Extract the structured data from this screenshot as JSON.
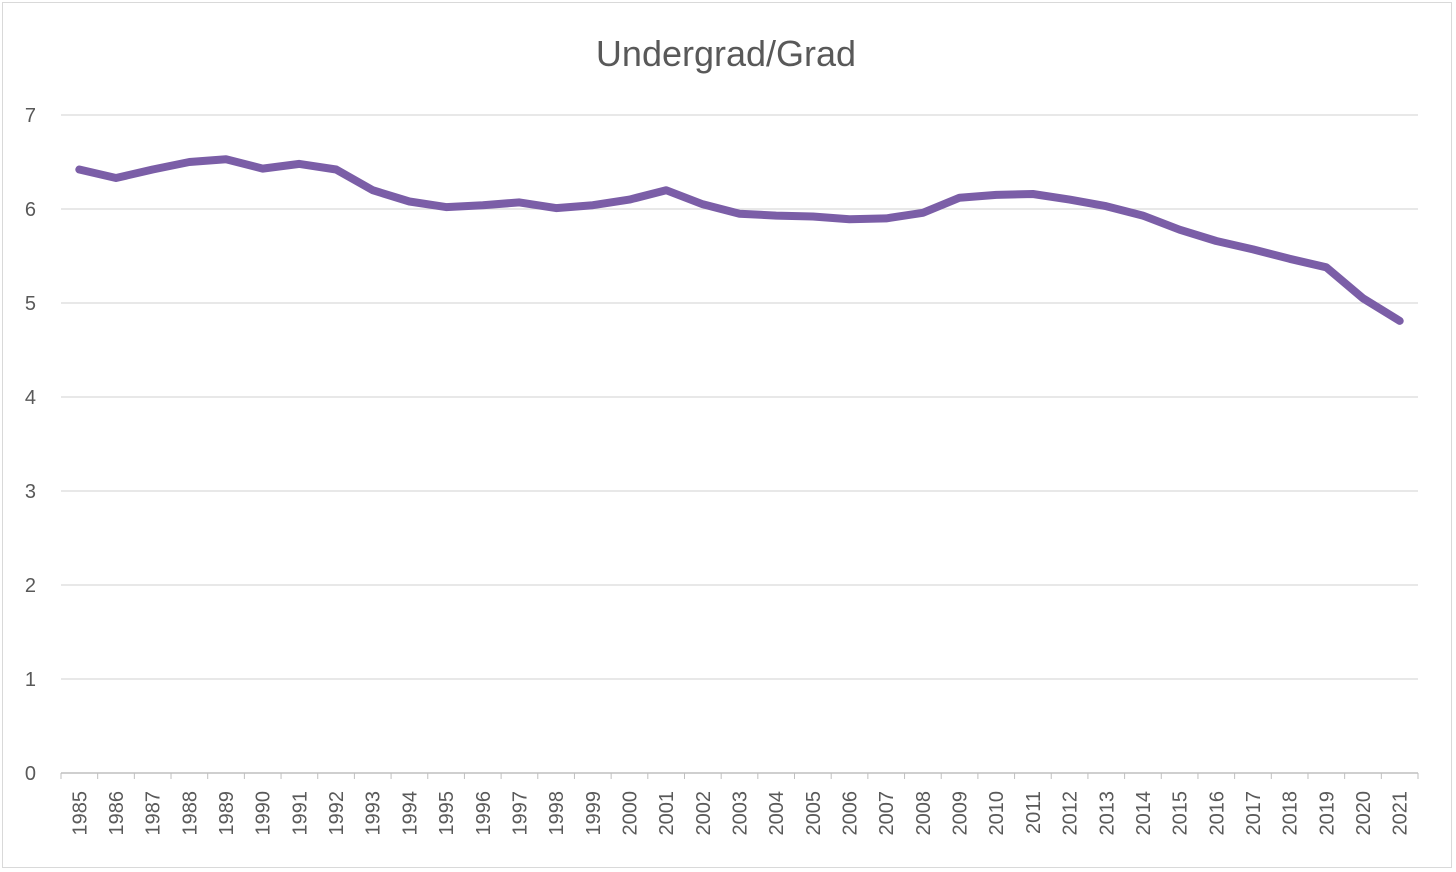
{
  "chart_data": {
    "type": "line",
    "title": "Undergrad/Grad",
    "xlabel": "",
    "ylabel": "",
    "ylim": [
      0,
      7
    ],
    "yticks": [
      "0",
      "1",
      "2",
      "3",
      "4",
      "5",
      "6",
      "7"
    ],
    "grid": true,
    "legend": "none",
    "categories": [
      "1985",
      "1986",
      "1987",
      "1988",
      "1989",
      "1990",
      "1991",
      "1992",
      "1993",
      "1994",
      "1995",
      "1996",
      "1997",
      "1998",
      "1999",
      "2000",
      "2001",
      "2002",
      "2003",
      "2004",
      "2005",
      "2006",
      "2007",
      "2008",
      "2009",
      "2010",
      "2011",
      "2012",
      "2013",
      "2014",
      "2015",
      "2016",
      "2017",
      "2018",
      "2019",
      "2020",
      "2021"
    ],
    "series": [
      {
        "color": "#7b5ea7",
        "values": [
          6.42,
          6.33,
          6.42,
          6.5,
          6.53,
          6.43,
          6.48,
          6.42,
          6.2,
          6.08,
          6.02,
          6.04,
          6.07,
          6.01,
          6.04,
          6.1,
          6.2,
          6.05,
          5.95,
          5.93,
          5.92,
          5.89,
          5.9,
          5.96,
          6.12,
          6.15,
          6.16,
          6.1,
          6.03,
          5.93,
          5.78,
          5.66,
          5.57,
          5.47,
          5.38,
          5.05,
          4.81
        ]
      }
    ],
    "colors": {
      "gridline": "#d9d9d9",
      "axis": "#bfbfbf",
      "text": "#595959"
    }
  }
}
